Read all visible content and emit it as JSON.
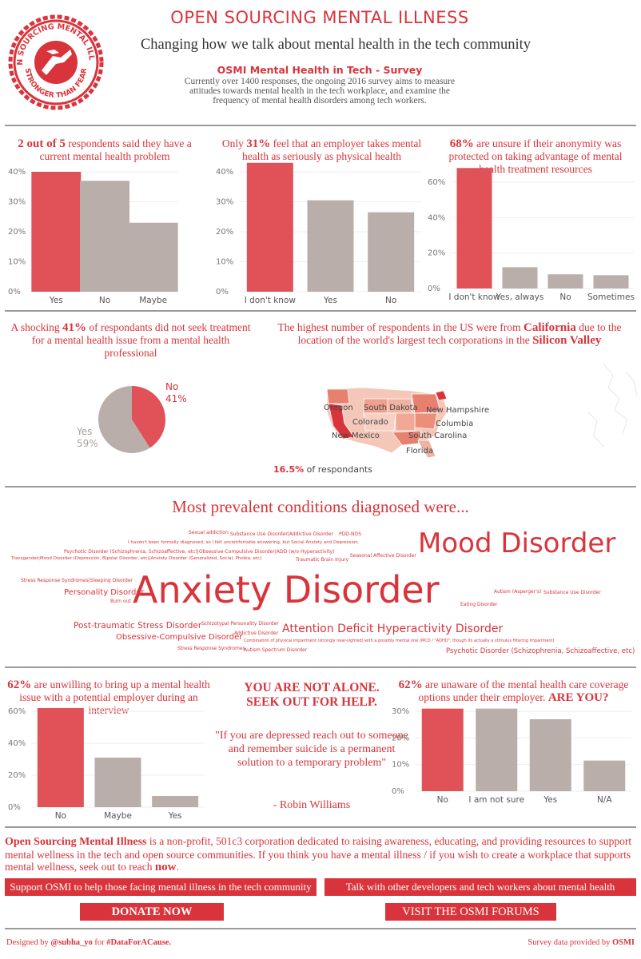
{
  "header": {
    "logo_text_top": "OPEN SOURCING MENTAL ILLNESS",
    "logo_text_bottom": "STRONGER THAN FEAR",
    "title": "OPEN SOURCING MENTAL ILLNESS",
    "subtitle": "Changing how we talk about mental health in the tech community",
    "survey_title": "OSMI Mental Health in Tech - Survey",
    "survey_desc": "Currently over 1400 responses, the ongoing 2016 survey aims to measure attitudes towards mental health in the tech workplace, and examine the frequency of mental health disorders among tech workers."
  },
  "panels": {
    "p1": {
      "highlight": "2 out of 5",
      "text": " respondents said they have a current mental health problem"
    },
    "p2": {
      "prefix": "Only ",
      "highlight": "31%",
      "text": " feel that an employer takes mental health as seriously as physical health"
    },
    "p3": {
      "highlight": "68%",
      "text": " are unsure if their anonymity was protected on taking advantage of mental health treatment resources"
    },
    "p4": {
      "prefix": "A shocking ",
      "highlight": "41%",
      "text": " of respondants did not seek treatment for a mental health issue from a mental health professional"
    },
    "p5": {
      "prefix": "The highest number of respondents in the US were from ",
      "highlight1": "California",
      "middle": " due to the location of the world's largest tech corporations in the ",
      "highlight2": "Silicon Valley"
    },
    "p6": {
      "highlight": "62%",
      "text": " are unwilling to bring up a mental health issue with a potential employer during an interview"
    },
    "p7": {
      "highlight": "62%",
      "text": " are unaware of the mental health care coverage options under their employer. ",
      "question": "ARE YOU?"
    }
  },
  "map": {
    "note_value": "16.5%",
    "note_text": " of respondants",
    "state_labels": [
      "Oregon",
      "South Dakota",
      "New Hampshire",
      "Colorado",
      "Columbia",
      "New Mexico",
      "South Carolina",
      "Florida"
    ]
  },
  "pie_labels": {
    "no_label": "No",
    "no_value": "41%",
    "yes_label": "Yes",
    "yes_value": "59%"
  },
  "conditions": {
    "heading": "Most prevalent conditions diagnosed were...",
    "words": [
      "Sexual addiction",
      "Substance Use Disorder|Addictive Disorder",
      "PDD-NOS",
      "I haven't been formally diagnosed, so I felt uncomfortable answering, but Social Anxiety and Depression.",
      "Psychotic Disorder (Schizophrenia, Schizoaffective, etc)|Obsessive-Compulsive Disorder|ADD (w/o Hyperactivity)",
      "Transgender|Mood Disorder (Depression, Bipolar Disorder, etc)|Anxiety Disorder (Generalized, Social, Phobia, etc)",
      "Traumatic Brain Injury",
      "Seasonal Affective Disorder",
      "Mood Disorder",
      "Stress Response Syndromes|Sleeping Disorder",
      "Personality Disorder",
      "Burn out",
      "Anxiety Disorder",
      "Autism (Asperger's)",
      "Substance Use Disorder",
      "Eating Disorder",
      "Post-traumatic Stress Disorder",
      "Schizotypal Personality Disorder",
      "Addictive Disorder",
      "Attention Deficit Hyperactivity Disorder",
      "Obsessive-Compulsive Disorder",
      "Combination of physical impairment (strongly near-sighted) with a possibly mental one (MCD / \"ADHD\", though its actually a stimulus filtering impairment)",
      "Stress Response Syndromes",
      "Autism Spectrum Disorder",
      "Psychotic Disorder (Schizophrenia, Schizoaffective, etc)"
    ]
  },
  "quote": {
    "headline1": "YOU ARE NOT ALONE.",
    "headline2": "SEEK OUT FOR HELP.",
    "text": "\"If you are depressed reach out to someone and remember suicide is a permanent solution to a temporary problem\"",
    "author": "- Robin Williams"
  },
  "footer": {
    "org_name": "Open Sourcing Mental Illness",
    "org_text": " is a non-profit, 501c3 corporation dedicated to raising awareness, educating, and providing resources to support mental wellness in the tech and open source communities. If you think you have a mental illness / if you wish to create a workplace that supports mental wellness, seek out to reach ",
    "org_now": "now",
    "support_text": "Support OSMI to help those facing mental illness in the tech community",
    "talk_text": "Talk with other developers and tech workers about mental health",
    "donate_label": "DONATE NOW",
    "forums_label": "VISIT THE OSMI FORUMS",
    "credit_prefix": "Designed by ",
    "credit_handle": "@subha_yo",
    "credit_mid": " for ",
    "credit_tag": "#DataForACause.",
    "source_prefix": "Survey data provided by ",
    "source_name": "OSMI"
  },
  "colors": {
    "accent": "#d9343b",
    "bar_red": "#e05257",
    "bar_gray": "#b9aea9",
    "divider": "#9a9a9a"
  },
  "chart_data": [
    {
      "type": "bar",
      "categories": [
        "Yes",
        "No",
        "Maybe"
      ],
      "values": [
        40,
        37,
        23
      ],
      "ylim": [
        0,
        40
      ],
      "yticks": [
        "0%",
        "10%",
        "20%",
        "30%",
        "40%"
      ]
    },
    {
      "type": "bar",
      "categories": [
        "I don't know",
        "Yes",
        "No"
      ],
      "values": [
        43,
        30.5,
        26.5
      ],
      "ylim": [
        0,
        40
      ],
      "yticks": [
        "0%",
        "10%",
        "20%",
        "30%",
        "40%"
      ]
    },
    {
      "type": "bar",
      "categories": [
        "I don't know",
        "Yes, always",
        "No",
        "Sometimes"
      ],
      "values": [
        68,
        12,
        8,
        7.5
      ],
      "ylim": [
        0,
        60
      ],
      "yticks": [
        "0%",
        "20%",
        "40%",
        "60%"
      ]
    },
    {
      "type": "pie",
      "categories": [
        "No",
        "Yes"
      ],
      "values": [
        41,
        59
      ]
    },
    {
      "type": "bar",
      "categories": [
        "No",
        "Maybe",
        "Yes"
      ],
      "values": [
        62,
        31,
        7
      ],
      "ylim": [
        0,
        60
      ],
      "yticks": [
        "0%",
        "20%",
        "40%",
        "60%"
      ]
    },
    {
      "type": "bar",
      "categories": [
        "No",
        "I am not sure",
        "Yes",
        "N/A"
      ],
      "values": [
        31,
        31,
        27,
        11.5
      ],
      "ylim": [
        0,
        30
      ],
      "yticks": [
        "0%",
        "10%",
        "20%",
        "30%"
      ]
    }
  ]
}
